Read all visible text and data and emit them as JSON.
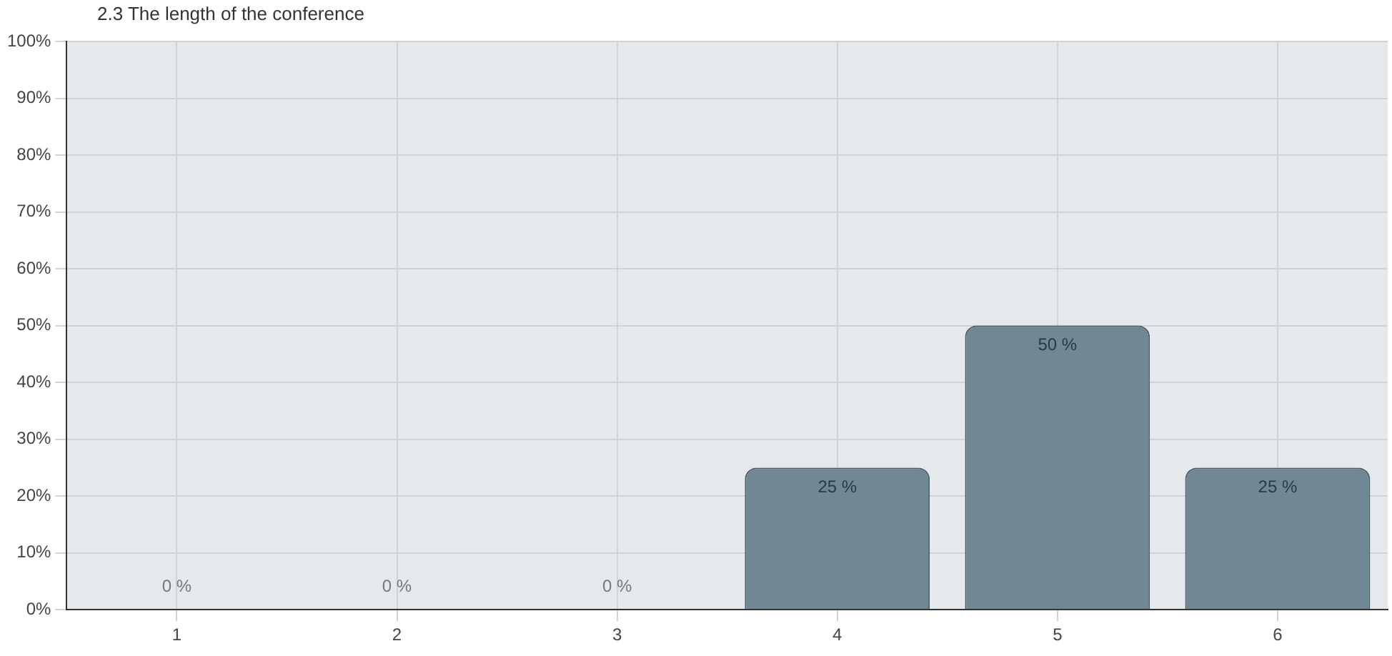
{
  "chart_data": {
    "type": "bar",
    "title": "2.3 The length of the conference",
    "categories": [
      "1",
      "2",
      "3",
      "4",
      "5",
      "6"
    ],
    "values": [
      0,
      0,
      0,
      25,
      50,
      25
    ],
    "value_labels": [
      "0 %",
      "0 %",
      "0 %",
      "25 %",
      "50 %",
      "25 %"
    ],
    "color": "#6f8894",
    "ylim": [
      0,
      100
    ],
    "yticks": [
      {
        "value": 0,
        "label": "0%"
      },
      {
        "value": 10,
        "label": "10%"
      },
      {
        "value": 20,
        "label": "20%"
      },
      {
        "value": 30,
        "label": "30%"
      },
      {
        "value": 40,
        "label": "40%"
      },
      {
        "value": 50,
        "label": "50%"
      },
      {
        "value": 60,
        "label": "60%"
      },
      {
        "value": 70,
        "label": "70%"
      },
      {
        "value": 80,
        "label": "80%"
      },
      {
        "value": 90,
        "label": "90%"
      },
      {
        "value": 100,
        "label": "100%"
      }
    ],
    "grid": true,
    "legend": false
  }
}
